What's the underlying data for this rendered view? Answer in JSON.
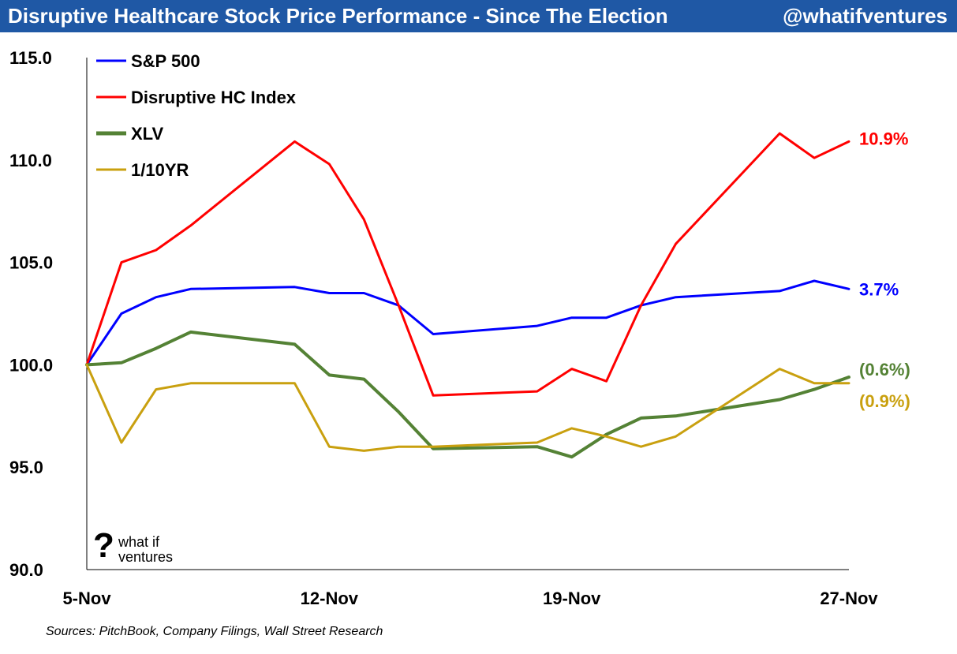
{
  "header": {
    "title": "Disruptive Healthcare Stock Price Performance - Since The Election",
    "handle": "@whatifventures"
  },
  "logo": {
    "mark": "?",
    "text": "what if\nventures"
  },
  "source": "Sources: PitchBook, Company Filings, Wall Street Research",
  "chart_data": {
    "type": "line",
    "title": "Disruptive Healthcare Stock Price Performance - Since The Election",
    "xlabel": "",
    "ylabel": "",
    "ylim": [
      90,
      115
    ],
    "yticks": [
      90,
      95,
      100,
      105,
      110,
      115
    ],
    "ytick_labels": [
      "90.0",
      "95.0",
      "100.0",
      "105.0",
      "110.0",
      "115.0"
    ],
    "xlim": [
      0,
      22
    ],
    "xtick_positions": [
      0,
      7,
      14,
      22
    ],
    "xtick_labels": [
      "5-Nov",
      "12-Nov",
      "19-Nov",
      "27-Nov"
    ],
    "grid": false,
    "legend_position": "top-left",
    "x": [
      0,
      1,
      2,
      3,
      6,
      7,
      8,
      9,
      10,
      13,
      14,
      15,
      16,
      17,
      20,
      21,
      22
    ],
    "series": [
      {
        "name": "S&P 500",
        "color": "#0000ff",
        "end_label": "3.7%",
        "values": [
          100.0,
          102.5,
          103.3,
          103.7,
          103.8,
          103.5,
          103.5,
          102.9,
          101.5,
          101.9,
          102.3,
          102.3,
          102.9,
          103.3,
          103.6,
          104.1,
          103.7
        ]
      },
      {
        "name": "Disruptive HC Index",
        "color": "#ff0000",
        "end_label": "10.9%",
        "values": [
          100.0,
          105.0,
          105.6,
          106.8,
          110.9,
          109.8,
          107.1,
          102.9,
          98.5,
          98.7,
          99.8,
          99.2,
          102.9,
          105.9,
          111.3,
          110.1,
          110.9
        ]
      },
      {
        "name": "XLV",
        "color": "#548235",
        "end_label": "(0.6%)",
        "values": [
          100.0,
          100.1,
          100.8,
          101.6,
          101.0,
          99.5,
          99.3,
          97.7,
          95.9,
          96.0,
          95.5,
          96.6,
          97.4,
          97.5,
          98.3,
          98.8,
          99.4
        ]
      },
      {
        "name": "1/10YR",
        "color": "#c9a00f",
        "end_label": "(0.9%)",
        "values": [
          100.0,
          96.2,
          98.8,
          99.1,
          99.1,
          96.0,
          95.8,
          96.0,
          96.0,
          96.2,
          96.9,
          96.5,
          96.0,
          96.5,
          99.8,
          99.1,
          99.1
        ]
      }
    ]
  }
}
